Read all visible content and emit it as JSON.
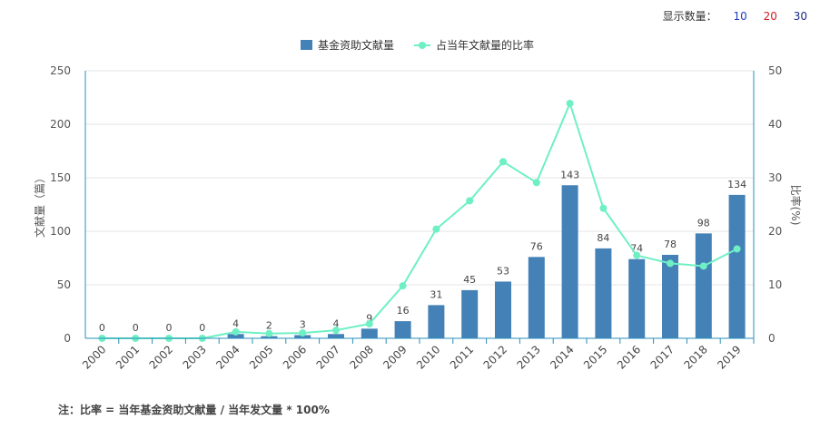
{
  "display_control": {
    "label": "显示数量：",
    "options": [
      "10",
      "20",
      "30"
    ]
  },
  "colors": {
    "bar": "#4481b7",
    "line": "#6ef0c4",
    "axis": "#2a8fb8",
    "grid": "#e6e6e6"
  },
  "chart_data": {
    "type": "bar+line",
    "categories": [
      "2000",
      "2001",
      "2002",
      "2003",
      "2004",
      "2005",
      "2006",
      "2007",
      "2008",
      "2009",
      "2010",
      "2011",
      "2012",
      "2013",
      "2014",
      "2015",
      "2016",
      "2017",
      "2018",
      "2019"
    ],
    "series": [
      {
        "name": "基金资助文献量",
        "type": "bar",
        "axis": "left",
        "values": [
          0,
          0,
          0,
          0,
          4,
          2,
          3,
          4,
          9,
          16,
          31,
          45,
          53,
          76,
          143,
          84,
          74,
          78,
          98,
          134
        ]
      },
      {
        "name": "占当年文献量的比率",
        "type": "line",
        "axis": "right",
        "values": [
          0,
          0,
          0,
          0,
          1.2,
          0.9,
          1.0,
          1.5,
          2.7,
          9.8,
          20.4,
          25.7,
          33.0,
          29.1,
          43.9,
          24.3,
          15.5,
          14.0,
          13.5,
          16.7
        ]
      }
    ],
    "ylabel_left": "文献量（篇）",
    "ylabel_right": "比率(%)",
    "ylim_left": [
      0,
      250
    ],
    "ylim_right": [
      0,
      50
    ],
    "yticks_left": [
      0,
      50,
      100,
      150,
      200,
      250
    ],
    "yticks_right": [
      0,
      10,
      20,
      30,
      40,
      50
    ],
    "legend_position": "top-center",
    "grid": true
  },
  "footnote": "注：比率 = 当年基金资助文献量 / 当年发文量 * 100%"
}
